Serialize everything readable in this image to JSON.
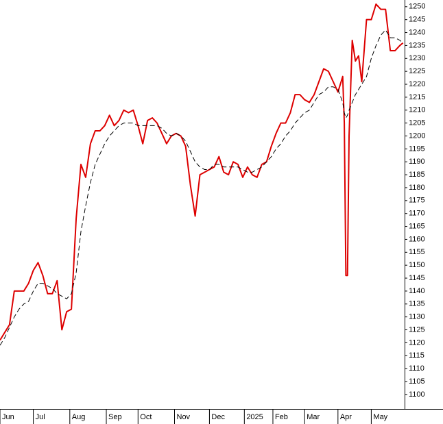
{
  "chart_data": {
    "type": "line",
    "x": [
      0,
      3,
      6,
      9,
      12,
      15,
      18,
      21,
      24,
      27,
      30,
      33,
      36,
      39,
      42,
      45,
      48,
      51,
      54,
      57,
      60,
      63,
      66,
      69,
      72,
      75,
      78,
      81,
      84,
      87,
      90,
      93,
      96,
      99,
      102,
      105,
      108,
      111,
      114,
      117,
      120,
      123,
      126,
      129,
      132,
      135,
      138,
      141,
      144,
      147,
      150,
      153,
      156,
      159,
      162,
      165,
      168,
      171,
      174,
      177,
      180,
      183,
      186,
      189,
      192,
      195,
      198,
      201,
      204,
      207,
      210,
      213,
      216,
      217,
      218,
      219,
      220,
      222,
      224,
      226,
      228,
      231,
      234,
      237,
      240,
      243,
      246,
      249,
      252,
      254
    ],
    "series": [
      {
        "color": "#dd0000",
        "values": [
          1121,
          1124,
          1127,
          1140,
          1140,
          1140,
          1143,
          1148,
          1151,
          1146,
          1139,
          1139,
          1144,
          1125,
          1132,
          1133,
          1168,
          1189,
          1184,
          1197,
          1202,
          1202,
          1204,
          1208,
          1204,
          1206,
          1210,
          1209,
          1210,
          1204,
          1197,
          1206,
          1207,
          1205,
          1201,
          1197,
          1200,
          1201,
          1200,
          1196,
          1181,
          1169,
          1185,
          1186,
          1187,
          1188,
          1192,
          1186,
          1185,
          1190,
          1189,
          1184,
          1188,
          1185,
          1184,
          1189,
          1190,
          1196,
          1201,
          1205,
          1205,
          1209,
          1216,
          1216,
          1214,
          1213,
          1216,
          1221,
          1226,
          1225,
          1221,
          1217,
          1223,
          1205,
          1146,
          1146,
          1200,
          1237,
          1229,
          1231,
          1221,
          1245,
          1245,
          1251,
          1249,
          1249,
          1233,
          1233,
          1235,
          1236
        ]
      },
      {
        "color": "#000000",
        "dashed": true,
        "values": [
          1119,
          1122,
          1126,
          1130,
          1133,
          1135,
          1136,
          1140,
          1143,
          1143,
          1142,
          1141,
          1139,
          1138,
          1137,
          1139,
          1147,
          1163,
          1173,
          1182,
          1189,
          1193,
          1197,
          1200,
          1202,
          1204,
          1205,
          1205,
          1205,
          1204,
          1204,
          1204,
          1204,
          1204,
          1203,
          1201,
          1200,
          1201,
          1200,
          1198,
          1194,
          1190,
          1188,
          1187,
          1187,
          1189,
          1189,
          1188,
          1188,
          1188,
          1188,
          1187,
          1186,
          1186,
          1187,
          1188,
          1190,
          1192,
          1195,
          1197,
          1200,
          1202,
          1205,
          1207,
          1209,
          1210,
          1213,
          1216,
          1217,
          1219,
          1219,
          1218,
          1213,
          1209,
          1207,
          1208,
          1210,
          1213,
          1216,
          1218,
          1220,
          1223,
          1230,
          1235,
          1239,
          1241,
          1238,
          1238,
          1237,
          1236
        ]
      }
    ],
    "xlim": [
      0,
      255
    ],
    "xticks": [
      {
        "value": 0,
        "label": "Jun"
      },
      {
        "value": 21,
        "label": "Jul"
      },
      {
        "value": 44,
        "label": "Aug"
      },
      {
        "value": 67,
        "label": "Sep"
      },
      {
        "value": 87,
        "label": "Oct"
      },
      {
        "value": 110,
        "label": "Nov"
      },
      {
        "value": 132,
        "label": "Dec"
      },
      {
        "value": 154,
        "label": "2025"
      },
      {
        "value": 172,
        "label": "Feb"
      },
      {
        "value": 192,
        "label": "Mar"
      },
      {
        "value": 213,
        "label": "Apr"
      },
      {
        "value": 234,
        "label": "May"
      }
    ],
    "ylim": [
      1094.4,
      1252.6
    ],
    "yticks": [
      1100,
      1105,
      1110,
      1115,
      1120,
      1125,
      1130,
      1135,
      1140,
      1145,
      1150,
      1155,
      1160,
      1165,
      1170,
      1175,
      1180,
      1185,
      1190,
      1195,
      1200,
      1205,
      1210,
      1215,
      1220,
      1225,
      1230,
      1235,
      1240,
      1245,
      1250
    ],
    "grid": false
  }
}
